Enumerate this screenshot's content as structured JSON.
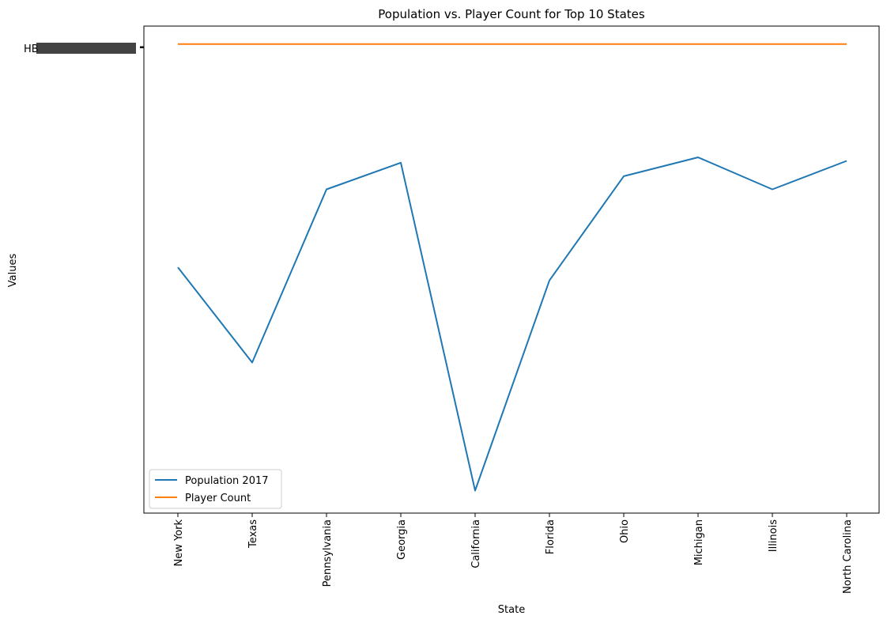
{
  "chart_data": {
    "type": "line",
    "title": "Population vs. Player Count for Top 10 States",
    "xlabel": "State",
    "ylabel": "Values",
    "categories": [
      "New York",
      "Texas",
      "Pennsylvania",
      "Georgia",
      "California",
      "Florida",
      "Ohio",
      "Michigan",
      "Illinois",
      "North Carolina"
    ],
    "series": [
      {
        "name": "Population 2017",
        "color": "#1f77b4",
        "values": [
          50.5,
          29.4,
          67.8,
          73.7,
          1.0,
          47.6,
          70.7,
          74.9,
          67.8,
          74.1
        ]
      },
      {
        "name": "Player Count",
        "color": "#ff7f0e",
        "values": [
          100,
          100,
          100,
          100,
          100,
          100,
          100,
          100,
          100,
          100
        ]
      }
    ],
    "ylim": [
      -4,
      104
    ],
    "y_tick_text_garbled": "HB",
    "grid": false,
    "legend_position": "lower-left"
  }
}
